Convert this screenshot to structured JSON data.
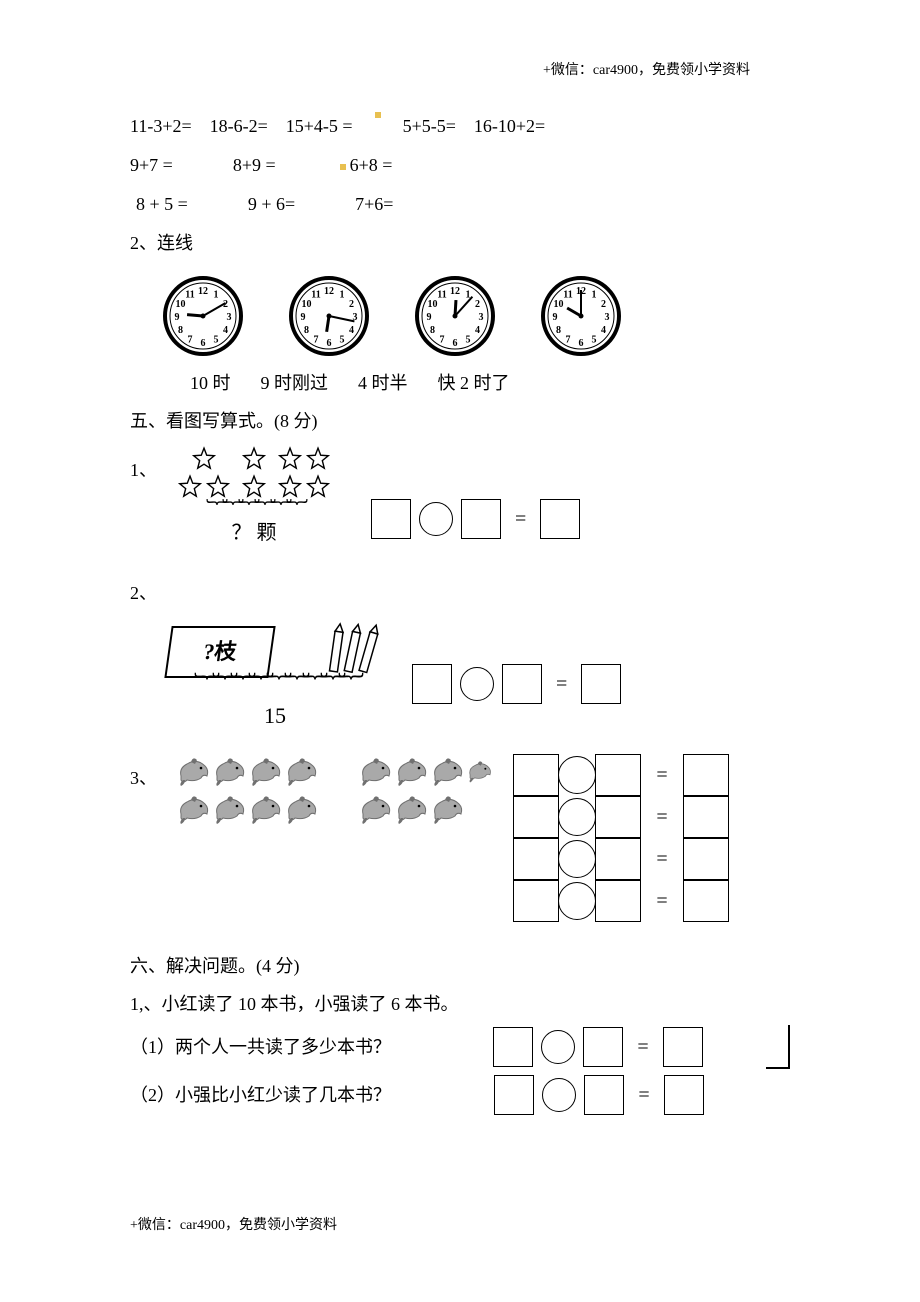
{
  "header": "+微信：car4900，免费领小学资料",
  "footer": "+微信：car4900，免费领小学资料",
  "arith": {
    "r1": [
      "11-3+2=",
      "18-6-2=",
      "15+4-5 =",
      "5+5-5=",
      "16-10+2="
    ],
    "r2": [
      "9+7 =",
      "8+9 =",
      "6+8 ="
    ],
    "r3": [
      "8 + 5 =",
      "9 + 6=",
      "7+6="
    ]
  },
  "q2_title": "2、连线",
  "clocks": [
    {
      "h": 9,
      "m": 10
    },
    {
      "h": 6,
      "m": 17
    },
    {
      "h": 12,
      "m": 7
    },
    {
      "h": 10,
      "m": 0
    }
  ],
  "clock_labels": [
    "10 时",
    "9 时刚过",
    "4 时半",
    "快 2 时了"
  ],
  "sec5_title": "五、看图写算式。(8 分)",
  "q5_1_num": "1、",
  "q5_1_brace": "？ 颗",
  "q5_2_num": "2、",
  "q5_2_box": "?枝",
  "q5_2_total": "15",
  "q5_3_num": "3、",
  "sec6_title": "六、解决问题。(4 分)",
  "q6_stem": "1,、小红读了 10 本书，小强读了 6 本书。",
  "q6_1": "（1）两个人一共读了多少本书？",
  "q6_2": "（2）小强比小红少读了几本书？",
  "colors": {
    "dolphin_body": "#a9a9a9",
    "dolphin_dark": "#707070",
    "star_stroke": "#000"
  }
}
